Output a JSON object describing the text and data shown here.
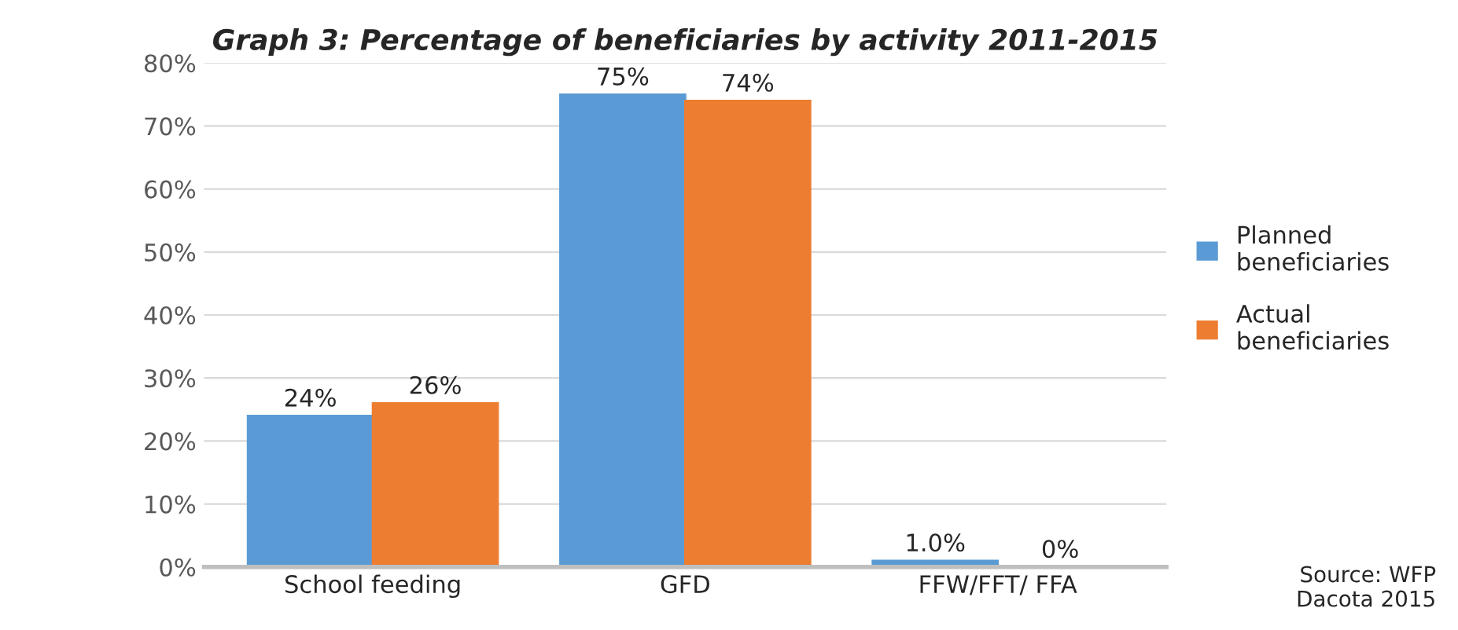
{
  "chart_data": {
    "type": "bar",
    "title": "Graph 3: Percentage of beneficiaries by activity 2011-2015",
    "categories": [
      "School feeding",
      "GFD",
      "FFW/FFT/ FFA"
    ],
    "series": [
      {
        "name": "Planned beneficiaries",
        "color": "#5b9bd5",
        "values": [
          24,
          75,
          1.0
        ],
        "value_labels": [
          "24%",
          "75%",
          "1.0%"
        ]
      },
      {
        "name": "Actual beneficiaries",
        "color": "#ed7d31",
        "values": [
          26,
          74,
          0
        ],
        "value_labels": [
          "26%",
          "74%",
          "0%"
        ]
      }
    ],
    "ylim": [
      0,
      80
    ],
    "yticks": [
      {
        "value": 0,
        "label": "0%"
      },
      {
        "value": 10,
        "label": "10%"
      },
      {
        "value": 20,
        "label": "20%"
      },
      {
        "value": 30,
        "label": "30%"
      },
      {
        "value": 40,
        "label": "40%"
      },
      {
        "value": 50,
        "label": "50%"
      },
      {
        "value": 60,
        "label": "60%"
      },
      {
        "value": 70,
        "label": "70%"
      },
      {
        "value": 80,
        "label": "80%"
      }
    ],
    "grid": "y",
    "legend": "right",
    "annotations": [
      "Source: WFP\nDacota 2015"
    ]
  }
}
